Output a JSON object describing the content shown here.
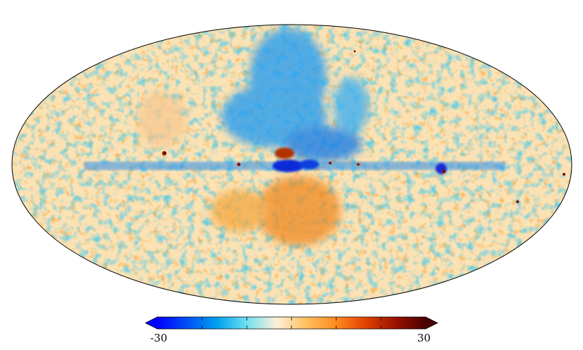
{
  "colorbar": {
    "min_label": "-30",
    "max_label": "30",
    "min": -30,
    "max": 30,
    "extend": "both",
    "ticks": [
      -30,
      -20,
      -10,
      0,
      10,
      20,
      30
    ],
    "colormap": [
      "#0000ff",
      "#0050f5",
      "#00a0f0",
      "#6fe0f0",
      "#fff0d8",
      "#ffc060",
      "#ff8a20",
      "#e04000",
      "#9a1000",
      "#4a0000"
    ]
  },
  "map": {
    "projection": "mollweide",
    "background": "#ffffff",
    "outline_color": "#000000"
  }
}
